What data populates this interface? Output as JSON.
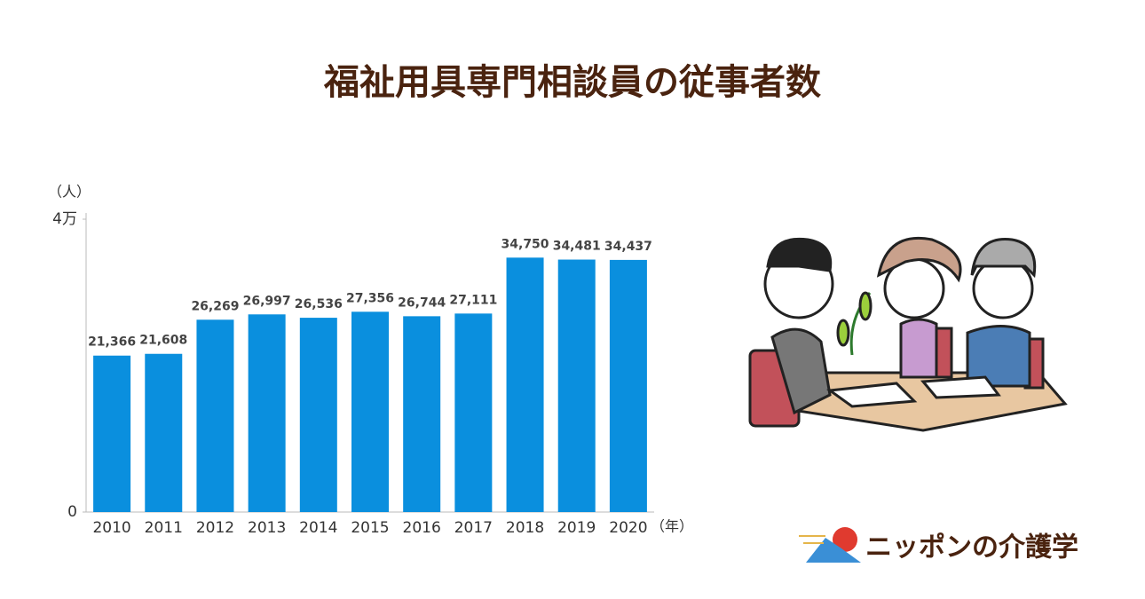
{
  "chart_data": {
    "type": "bar",
    "title": "福祉用具専門相談員の従事者数",
    "y_unit": "（人）",
    "x_unit": "（年）",
    "categories": [
      "2010",
      "2011",
      "2012",
      "2013",
      "2014",
      "2015",
      "2016",
      "2017",
      "2018",
      "2019",
      "2020"
    ],
    "values": [
      21366,
      21608,
      26269,
      26997,
      26536,
      27356,
      26744,
      27111,
      34750,
      34481,
      34437
    ],
    "value_labels": [
      "21,366",
      "21,608",
      "26,269",
      "26,997",
      "26,536",
      "27,356",
      "26,744",
      "27,111",
      "34,750",
      "34,481",
      "34,437"
    ],
    "color": "#0a8fde",
    "ylim": [
      0,
      40000
    ],
    "yticks": [
      0,
      {
        "value": 40000,
        "label": "4万"
      }
    ]
  },
  "logo": "ニッポンの介護学"
}
